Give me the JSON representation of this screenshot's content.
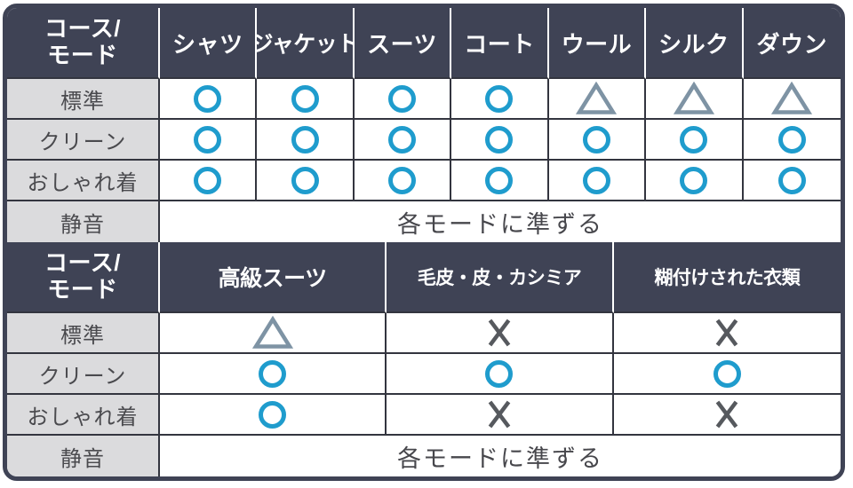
{
  "colors": {
    "header_bg": "#3f4355",
    "header_text": "#ffffff",
    "label_bg": "#dbdbdd",
    "label_text": "#4a4a4e",
    "grid_line": "#33353f",
    "outer_border": "#3f4355",
    "cell_bg": "#ffffff",
    "span_text": "#47474c",
    "circle": "#1f9ccd",
    "triangle": "#7e93a4",
    "cross": "#56595e"
  },
  "sections": [
    {
      "corner_label_lines": [
        "コース/",
        "モード"
      ],
      "columns": [
        "シャツ",
        "ジャケット",
        "スーツ",
        "コート",
        "ウール",
        "シルク",
        "ダウン"
      ],
      "rows": [
        {
          "label": "標準",
          "cells": [
            "circle",
            "circle",
            "circle",
            "circle",
            "triangle",
            "triangle",
            "triangle"
          ]
        },
        {
          "label": "クリーン",
          "cells": [
            "circle",
            "circle",
            "circle",
            "circle",
            "circle",
            "circle",
            "circle"
          ]
        },
        {
          "label": "おしゃれ着",
          "cells": [
            "circle",
            "circle",
            "circle",
            "circle",
            "circle",
            "circle",
            "circle"
          ]
        },
        {
          "label": "静音",
          "span_text": "各モードに準ずる"
        }
      ]
    },
    {
      "corner_label_lines": [
        "コース/",
        "モード"
      ],
      "columns": [
        "高級スーツ",
        "毛皮・皮・カシミア",
        "糊付けされた衣類"
      ],
      "rows": [
        {
          "label": "標準",
          "cells": [
            "triangle",
            "cross",
            "cross"
          ]
        },
        {
          "label": "クリーン",
          "cells": [
            "circle",
            "circle",
            "circle"
          ]
        },
        {
          "label": "おしゃれ着",
          "cells": [
            "circle",
            "cross",
            "cross"
          ]
        },
        {
          "label": "静音",
          "span_text": "各モードに準ずる"
        }
      ]
    }
  ],
  "chart_data": [
    {
      "type": "table",
      "title": "コース/モード 対応表 (上段)",
      "columns": [
        "コース/モード",
        "シャツ",
        "ジャケット",
        "スーツ",
        "コート",
        "ウール",
        "シルク",
        "ダウン"
      ],
      "rows": [
        [
          "標準",
          "○",
          "○",
          "○",
          "○",
          "△",
          "△",
          "△"
        ],
        [
          "クリーン",
          "○",
          "○",
          "○",
          "○",
          "○",
          "○",
          "○"
        ],
        [
          "おしゃれ着",
          "○",
          "○",
          "○",
          "○",
          "○",
          "○",
          "○"
        ],
        [
          "静音",
          "各モードに準ずる"
        ]
      ]
    },
    {
      "type": "table",
      "title": "コース/モード 対応表 (下段)",
      "columns": [
        "コース/モード",
        "高級スーツ",
        "毛皮・皮・カシミア",
        "糊付けされた衣類"
      ],
      "rows": [
        [
          "標準",
          "△",
          "×",
          "×"
        ],
        [
          "クリーン",
          "○",
          "○",
          "○"
        ],
        [
          "おしゃれ着",
          "○",
          "×",
          "×"
        ],
        [
          "静音",
          "各モードに準ずる"
        ]
      ]
    }
  ]
}
